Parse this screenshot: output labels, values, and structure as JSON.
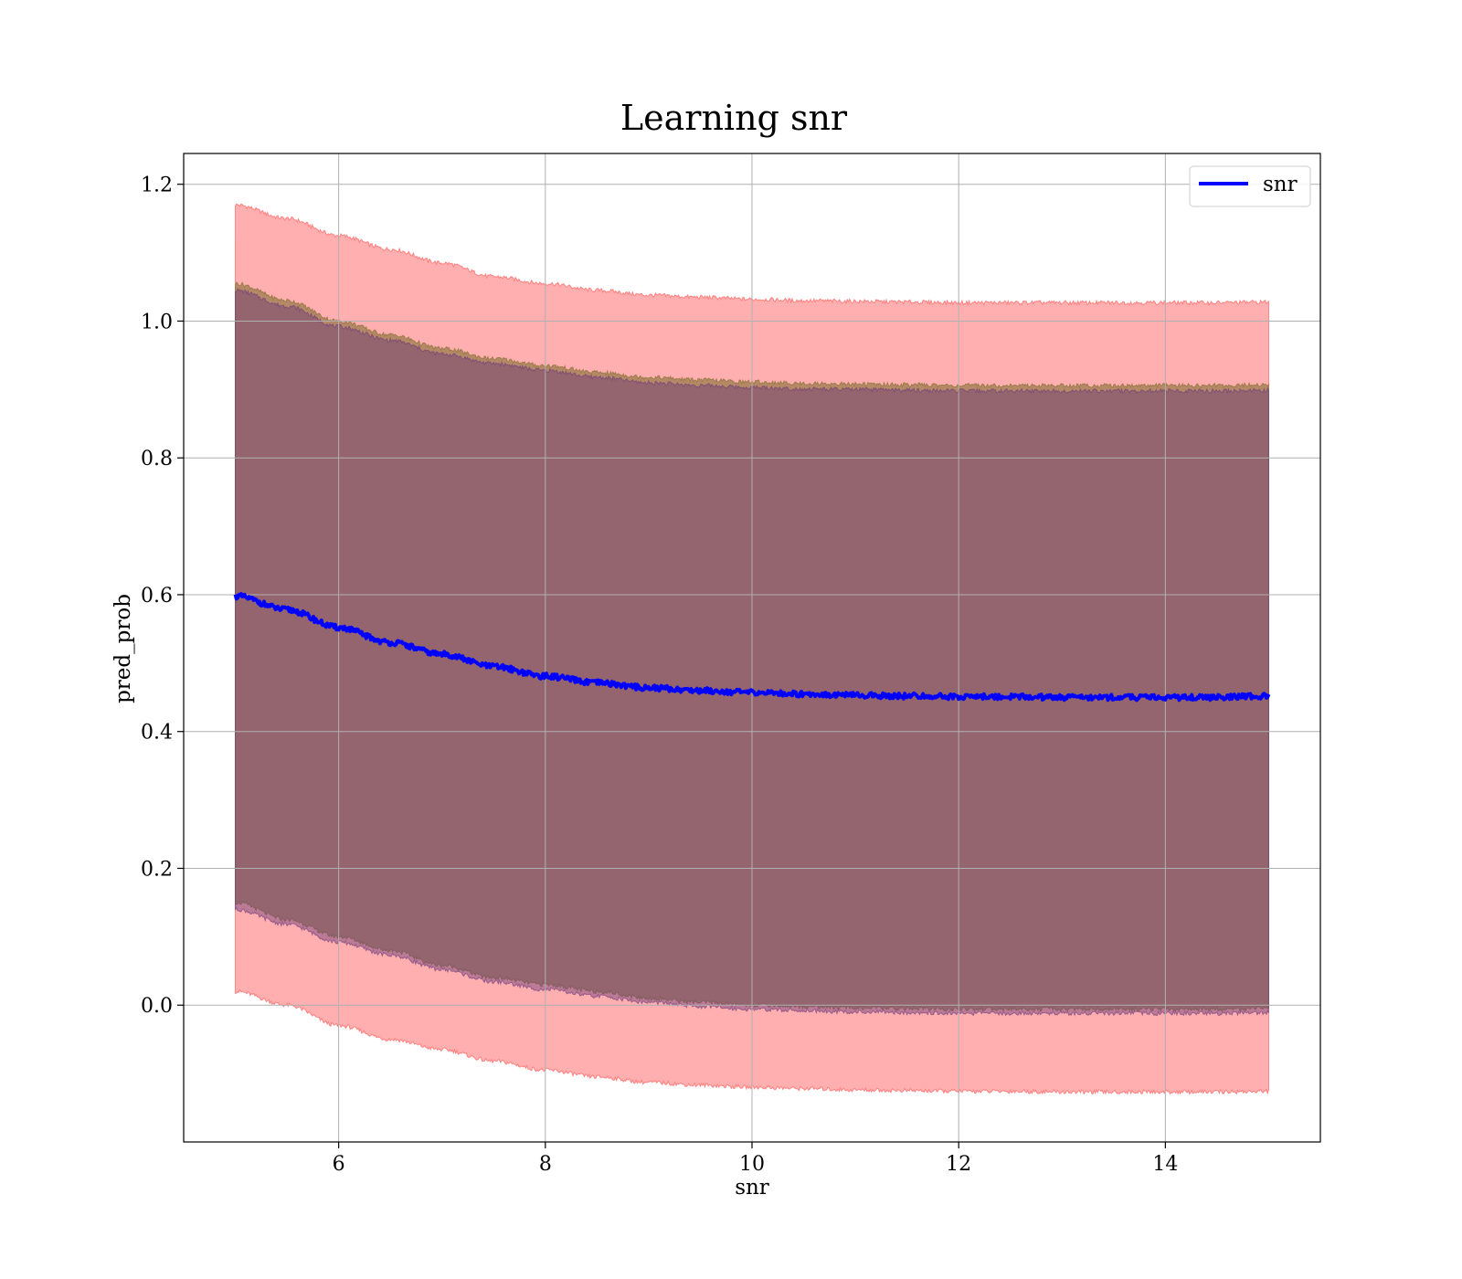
{
  "chart_data": {
    "type": "line",
    "title": "Learning snr",
    "xlabel": "snr",
    "ylabel": "pred_prob",
    "xlim": [
      4.5,
      15.5
    ],
    "ylim": [
      -0.2,
      1.245
    ],
    "xticks": [
      6,
      8,
      10,
      12,
      14
    ],
    "xtick_labels": [
      "6",
      "8",
      "10",
      "12",
      "14"
    ],
    "yticks": [
      0.0,
      0.2,
      0.4,
      0.6,
      0.8,
      1.0,
      1.2
    ],
    "ytick_labels": [
      "0.0",
      "0.2",
      "0.4",
      "0.6",
      "0.8",
      "1.0",
      "1.2"
    ],
    "grid": true,
    "legend_position": "upper-right",
    "x": [
      5.0,
      5.5,
      6.0,
      6.5,
      7.0,
      7.5,
      8.0,
      8.5,
      9.0,
      9.5,
      10.0,
      10.5,
      11.0,
      11.5,
      12.0,
      12.5,
      13.0,
      13.5,
      14.0,
      14.5,
      15.0
    ],
    "series": [
      {
        "name": "snr",
        "color": "#0000ff",
        "values": [
          0.598,
          0.578,
          0.552,
          0.53,
          0.513,
          0.495,
          0.481,
          0.471,
          0.464,
          0.46,
          0.457,
          0.455,
          0.453,
          0.452,
          0.451,
          0.451,
          0.45,
          0.45,
          0.45,
          0.45,
          0.452
        ]
      }
    ],
    "bands": [
      {
        "color": "#ff4d4d",
        "opacity": 0.45,
        "upper": [
          1.17,
          1.15,
          1.125,
          1.105,
          1.085,
          1.065,
          1.055,
          1.045,
          1.038,
          1.035,
          1.032,
          1.03,
          1.029,
          1.028,
          1.027,
          1.027,
          1.027,
          1.027,
          1.027,
          1.027,
          1.028
        ],
        "lower": [
          0.02,
          0.0,
          -0.03,
          -0.05,
          -0.065,
          -0.082,
          -0.095,
          -0.105,
          -0.113,
          -0.117,
          -0.12,
          -0.122,
          -0.124,
          -0.125,
          -0.126,
          -0.126,
          -0.127,
          -0.127,
          -0.127,
          -0.127,
          -0.126
        ]
      },
      {
        "color": "#7a6a2a",
        "opacity": 0.55,
        "upper": [
          1.055,
          1.03,
          1.0,
          0.98,
          0.96,
          0.945,
          0.935,
          0.925,
          0.918,
          0.914,
          0.911,
          0.909,
          0.908,
          0.907,
          0.906,
          0.906,
          0.906,
          0.906,
          0.906,
          0.906,
          0.907
        ],
        "lower": [
          0.15,
          0.125,
          0.1,
          0.08,
          0.058,
          0.04,
          0.03,
          0.02,
          0.01,
          0.004,
          0.0,
          -0.002,
          -0.004,
          -0.005,
          -0.006,
          -0.006,
          -0.006,
          -0.006,
          -0.006,
          -0.006,
          -0.005
        ]
      },
      {
        "color": "#6a3a7a",
        "opacity": 0.45,
        "upper": [
          1.045,
          1.022,
          0.992,
          0.972,
          0.952,
          0.938,
          0.928,
          0.918,
          0.91,
          0.906,
          0.903,
          0.901,
          0.9,
          0.899,
          0.898,
          0.898,
          0.898,
          0.898,
          0.898,
          0.898,
          0.899
        ],
        "lower": [
          0.14,
          0.118,
          0.092,
          0.073,
          0.052,
          0.034,
          0.023,
          0.013,
          0.004,
          -0.002,
          -0.006,
          -0.008,
          -0.01,
          -0.011,
          -0.012,
          -0.012,
          -0.012,
          -0.012,
          -0.012,
          -0.012,
          -0.011
        ]
      }
    ]
  }
}
